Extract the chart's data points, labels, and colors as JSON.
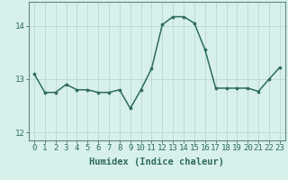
{
  "x": [
    0,
    1,
    2,
    3,
    4,
    5,
    6,
    7,
    8,
    9,
    10,
    11,
    12,
    13,
    14,
    15,
    16,
    17,
    18,
    19,
    20,
    21,
    22,
    23
  ],
  "y": [
    13.1,
    12.75,
    12.75,
    12.9,
    12.8,
    12.8,
    12.75,
    12.75,
    12.8,
    12.45,
    12.8,
    13.2,
    14.02,
    14.17,
    14.17,
    14.05,
    13.55,
    12.83,
    12.83,
    12.83,
    12.83,
    12.77,
    13.0,
    13.22
  ],
  "line_color": "#2e6b5e",
  "marker": "o",
  "marker_size": 2.2,
  "bg_color": "#d8f0ec",
  "grid_color": "#b8d8d2",
  "xlabel": "Humidex (Indice chaleur)",
  "ylim": [
    11.85,
    14.45
  ],
  "yticks": [
    12,
    13,
    14
  ],
  "xticks": [
    0,
    1,
    2,
    3,
    4,
    5,
    6,
    7,
    8,
    9,
    10,
    11,
    12,
    13,
    14,
    15,
    16,
    17,
    18,
    19,
    20,
    21,
    22,
    23
  ],
  "tick_color": "#2e6b5e",
  "axis_color": "#5a8a7a",
  "xlabel_fontsize": 7.5,
  "tick_fontsize": 6.5,
  "linewidth": 1.1
}
